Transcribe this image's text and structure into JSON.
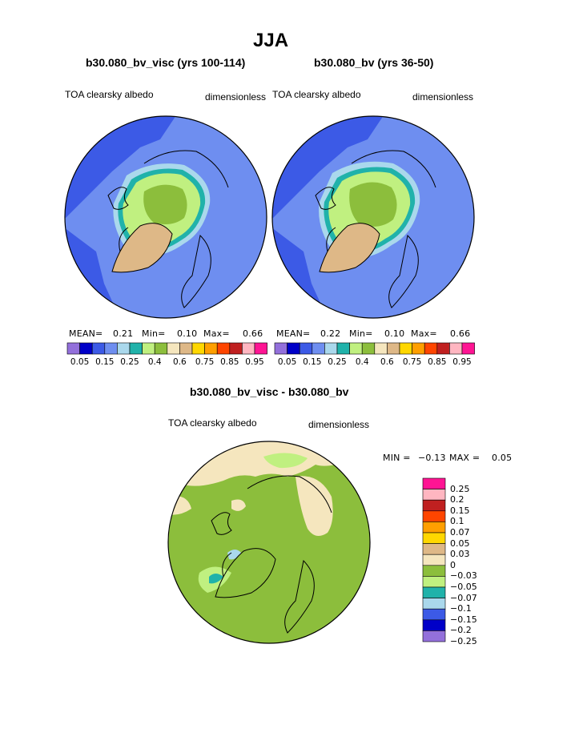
{
  "figure": {
    "title": "JJA"
  },
  "panel_left": {
    "case_title": "b30.080_bv_visc (yrs 100-114)",
    "variable": "TOA clearsky albedo",
    "units": "dimensionless",
    "stats": {
      "mean_label": "MEAN=",
      "mean": "0.21",
      "min_label": "Min=",
      "min": "0.10",
      "max_label": "Max=",
      "max": "0.66"
    }
  },
  "panel_right": {
    "case_title": "b30.080_bv (yrs 36-50)",
    "variable": "TOA clearsky albedo",
    "units": "dimensionless",
    "stats": {
      "mean_label": "MEAN=",
      "mean": "0.22",
      "min_label": "Min=",
      "min": "0.10",
      "max_label": "Max=",
      "max": "0.66"
    }
  },
  "panel_diff": {
    "case_title": "b30.080_bv_visc - b30.080_bv",
    "variable": "TOA clearsky albedo",
    "units": "dimensionless",
    "stats": {
      "min_label": "MIN =",
      "min": "−0.13",
      "max_label": "MAX =",
      "max": "0.05"
    }
  },
  "colorbar_abs": {
    "colors": [
      "#9370db",
      "#0000c8",
      "#3c5ae6",
      "#6e8ef0",
      "#aad8ec",
      "#20b2aa",
      "#c0f080",
      "#8cbe3c",
      "#f5e6be",
      "#deb887",
      "#ffd700",
      "#ff9f00",
      "#ff4500",
      "#c02020",
      "#ffb6c1",
      "#ff1493"
    ],
    "tick_labels": [
      "0.05",
      "0.15",
      "0.25",
      "0.4",
      "0.6",
      "0.75",
      "0.85",
      "0.95"
    ]
  },
  "colorbar_diff": {
    "colors": [
      "#ff1493",
      "#ffb6c1",
      "#c02020",
      "#ff4500",
      "#ff9f00",
      "#ffd700",
      "#deb887",
      "#f5e6be",
      "#8cbe3c",
      "#c0f080",
      "#20b2aa",
      "#aad8ec",
      "#3c5ae6",
      "#0000c8",
      "#9370db"
    ],
    "tick_labels": [
      "0.25",
      "0.2",
      "0.15",
      "0.1",
      "0.07",
      "0.05",
      "0.03",
      "0",
      "−0.03",
      "−0.05",
      "−0.07",
      "−0.1",
      "−0.15",
      "−0.2",
      "−0.25"
    ]
  },
  "map_colors": {
    "ocean_blue": "#6e8ef0",
    "ocean_dark": "#3c5ae6",
    "ice_light": "#c0f080",
    "ice_green": "#8cbe3c",
    "greenland": "#deb887",
    "teal": "#20b2aa",
    "lightblue": "#aad8ec",
    "diff_bg": "#8cbe3c",
    "diff_beige": "#f5e6be",
    "diff_light": "#c0f080"
  }
}
